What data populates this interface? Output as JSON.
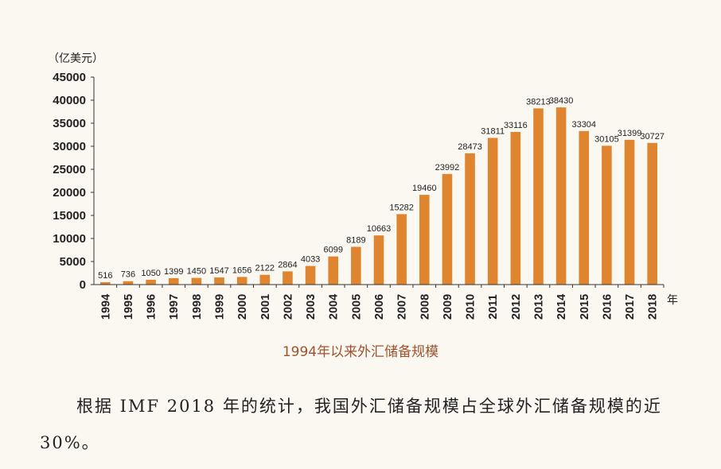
{
  "chart_data": {
    "type": "bar",
    "title": "1994年以来外汇储备规模",
    "ylabel": "（亿美元）",
    "xlabel": "年",
    "categories": [
      "1994",
      "1995",
      "1996",
      "1997",
      "1998",
      "1999",
      "2000",
      "2001",
      "2002",
      "2003",
      "2004",
      "2005",
      "2006",
      "2007",
      "2008",
      "2009",
      "2010",
      "2011",
      "2012",
      "2013",
      "2014",
      "2015",
      "2016",
      "2017",
      "2018"
    ],
    "values": [
      516,
      736,
      1050,
      1399,
      1450,
      1547,
      1656,
      2122,
      2864,
      4033,
      6099,
      8189,
      10663,
      15282,
      19460,
      23992,
      28473,
      31811,
      33116,
      38213,
      38430,
      33304,
      30105,
      31399,
      30727
    ],
    "yticks": [
      "0",
      "5000",
      "10000",
      "15000",
      "20000",
      "25000",
      "30000",
      "35000",
      "40000",
      "45000"
    ],
    "ylim": [
      0,
      45000
    ],
    "grid": false,
    "bar_color": "#e0852f"
  },
  "paragraph": "根据 IMF 2018 年的统计，我国外汇储备规模占全球外汇储备规模的近 30%。"
}
